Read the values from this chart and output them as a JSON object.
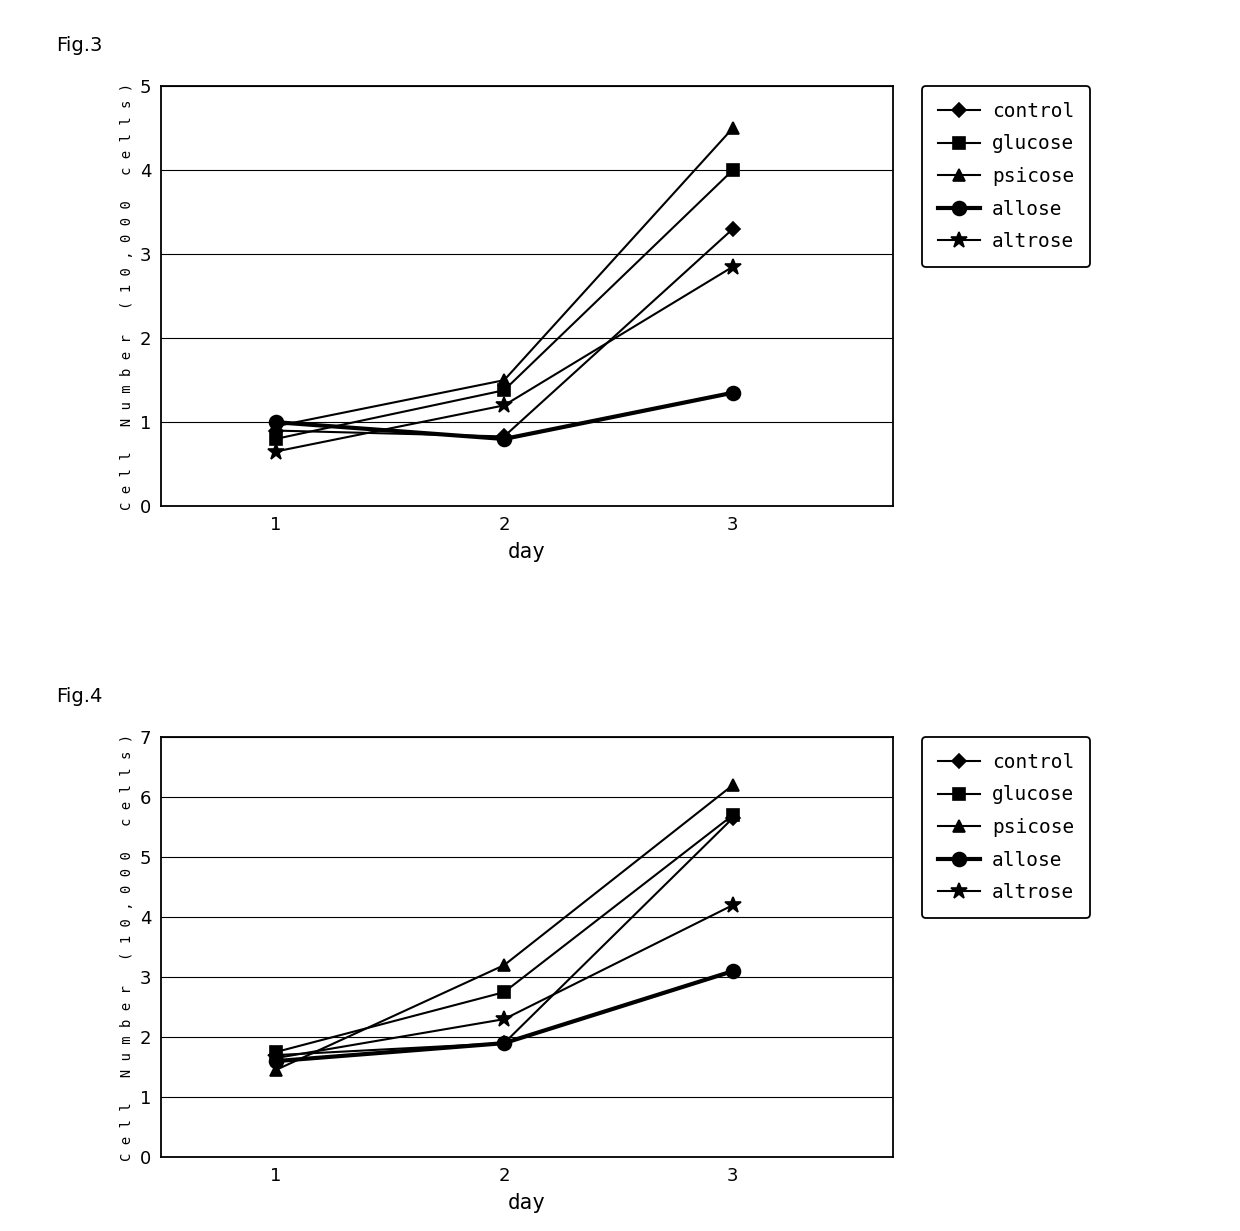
{
  "fig3": {
    "title": "Fig.3",
    "days": [
      1,
      2,
      3
    ],
    "series_order": [
      "control",
      "glucose",
      "psicose",
      "allose",
      "altrose"
    ],
    "series": {
      "control": {
        "values": [
          0.9,
          0.83,
          3.3
        ],
        "marker": "D",
        "lw": 1.5,
        "ms": 7,
        "mfc": "black"
      },
      "glucose": {
        "values": [
          0.8,
          1.38,
          4.0
        ],
        "marker": "s",
        "lw": 1.5,
        "ms": 8,
        "mfc": "black"
      },
      "psicose": {
        "values": [
          0.95,
          1.5,
          4.5
        ],
        "marker": "^",
        "lw": 1.5,
        "ms": 9,
        "mfc": "black"
      },
      "allose": {
        "values": [
          1.0,
          0.8,
          1.35
        ],
        "marker": "o",
        "lw": 3.0,
        "ms": 10,
        "mfc": "black"
      },
      "altrose": {
        "values": [
          0.65,
          1.2,
          2.85
        ],
        "marker": "*",
        "lw": 1.5,
        "ms": 12,
        "mfc": "black"
      }
    },
    "ylabel_chars": "Cell Number (10,000 cells)",
    "xlabel": "day",
    "ylim": [
      0,
      5
    ],
    "yticks": [
      0,
      1,
      2,
      3,
      4,
      5
    ],
    "xticks": [
      1,
      2,
      3
    ],
    "xlim": [
      0.5,
      3.7
    ]
  },
  "fig4": {
    "title": "Fig.4",
    "days": [
      1,
      2,
      3
    ],
    "series_order": [
      "control",
      "glucose",
      "psicose",
      "allose",
      "altrose"
    ],
    "series": {
      "control": {
        "values": [
          1.7,
          1.9,
          5.65
        ],
        "marker": "D",
        "lw": 1.5,
        "ms": 7,
        "mfc": "black"
      },
      "glucose": {
        "values": [
          1.75,
          2.75,
          5.7
        ],
        "marker": "s",
        "lw": 1.5,
        "ms": 8,
        "mfc": "black"
      },
      "psicose": {
        "values": [
          1.45,
          3.2,
          6.2
        ],
        "marker": "^",
        "lw": 1.5,
        "ms": 9,
        "mfc": "black"
      },
      "allose": {
        "values": [
          1.6,
          1.9,
          3.1
        ],
        "marker": "o",
        "lw": 3.0,
        "ms": 10,
        "mfc": "black"
      },
      "altrose": {
        "values": [
          1.65,
          2.3,
          4.2
        ],
        "marker": "*",
        "lw": 1.5,
        "ms": 12,
        "mfc": "black"
      }
    },
    "ylabel_chars": "Cell Number (10,000 cells)",
    "xlabel": "day",
    "ylim": [
      0,
      7
    ],
    "yticks": [
      0,
      1,
      2,
      3,
      4,
      5,
      6,
      7
    ],
    "xticks": [
      1,
      2,
      3
    ],
    "xlim": [
      0.5,
      3.7
    ]
  },
  "background_color": "#ffffff",
  "line_color": "#000000",
  "legend_fontsize": 14,
  "tick_fontsize": 13,
  "xlabel_fontsize": 15,
  "ylabel_fontsize": 10,
  "fig_label_fontsize": 14
}
